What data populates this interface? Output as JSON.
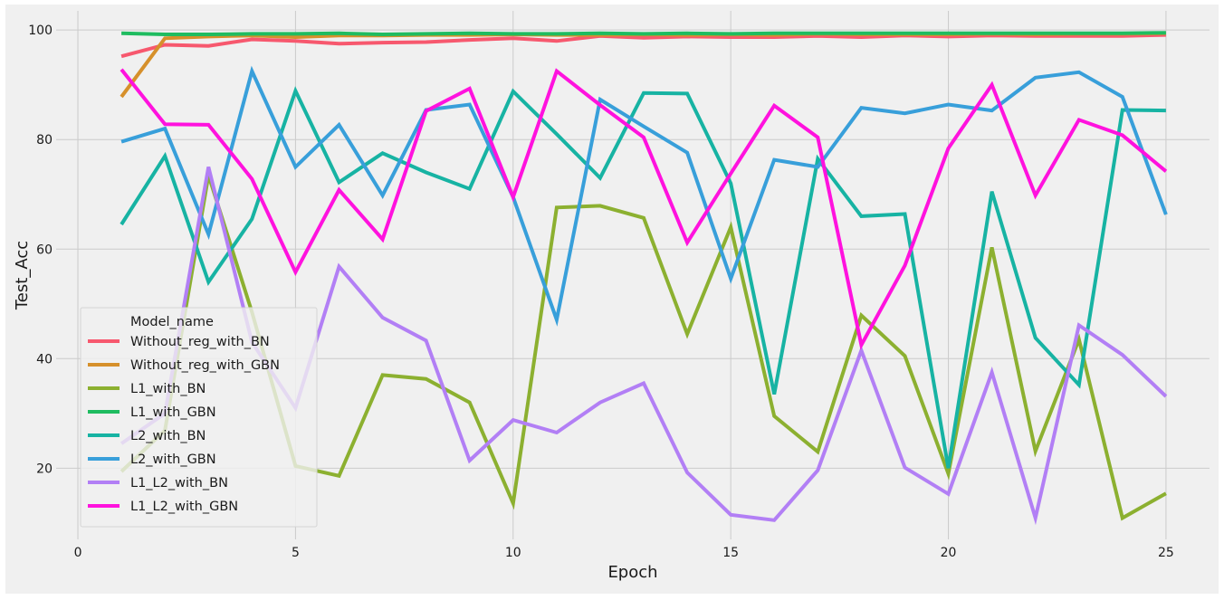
{
  "chart_data": {
    "type": "line",
    "title": "",
    "xlabel": "Epoch",
    "ylabel": "Test_Acc",
    "xlim": [
      -0.5,
      26.0
    ],
    "ylim": [
      7,
      103.5
    ],
    "xticks": [
      0,
      5,
      10,
      15,
      20,
      25
    ],
    "yticks": [
      20,
      40,
      60,
      80,
      100
    ],
    "grid": true,
    "legend": {
      "title": "Model_name",
      "placement": "lower-left"
    },
    "x": [
      1,
      2,
      3,
      4,
      5,
      6,
      7,
      8,
      9,
      10,
      11,
      12,
      13,
      14,
      15,
      16,
      17,
      18,
      19,
      20,
      21,
      22,
      23,
      24,
      25
    ],
    "series": [
      {
        "name": "Without_reg_with_BN",
        "color": "#f7586e",
        "values": [
          95.2,
          97.3,
          97.1,
          98.3,
          98.0,
          97.5,
          97.7,
          97.8,
          98.2,
          98.5,
          98.0,
          98.9,
          98.6,
          98.8,
          98.7,
          98.7,
          98.9,
          98.7,
          99.0,
          98.8,
          99.0,
          98.9,
          98.9,
          98.9,
          99.1
        ]
      },
      {
        "name": "Without_reg_with_GBN",
        "color": "#d6902b",
        "values": [
          87.8,
          98.5,
          98.8,
          99.0,
          98.7,
          99.0,
          99.0,
          99.1,
          99.1,
          99.2,
          99.1,
          99.1,
          99.2,
          99.1,
          99.2,
          99.1,
          99.3,
          99.2,
          99.2,
          99.2,
          99.3,
          99.2,
          99.3,
          99.3,
          99.4
        ]
      },
      {
        "name": "L1_with_BN",
        "color": "#8cb030",
        "values": [
          19.4,
          26.9,
          73.5,
          48.5,
          20.4,
          18.6,
          37.0,
          36.3,
          32.0,
          13.6,
          67.6,
          67.9,
          65.7,
          44.5,
          64.0,
          29.5,
          23.0,
          47.9,
          40.5,
          19.0,
          60.3,
          23.1,
          43.5,
          10.9,
          15.4
        ]
      },
      {
        "name": "L1_with_GBN",
        "color": "#1fbc60",
        "values": [
          99.4,
          99.2,
          99.2,
          99.3,
          99.3,
          99.4,
          99.2,
          99.3,
          99.4,
          99.3,
          99.3,
          99.4,
          99.3,
          99.4,
          99.3,
          99.4,
          99.4,
          99.4,
          99.4,
          99.4,
          99.4,
          99.4,
          99.4,
          99.4,
          99.5
        ]
      },
      {
        "name": "L2_with_BN",
        "color": "#17b3a3",
        "values": [
          64.5,
          77.0,
          54.0,
          65.5,
          88.9,
          72.2,
          77.5,
          74.0,
          71.0,
          88.8,
          81.0,
          73.0,
          88.5,
          88.4,
          72.0,
          33.5,
          76.5,
          66.0,
          66.4,
          20.0,
          70.5,
          43.8,
          35.2,
          85.4,
          85.3
        ]
      },
      {
        "name": "L2_with_GBN",
        "color": "#389fda",
        "values": [
          79.6,
          82.0,
          62.7,
          92.5,
          75.0,
          82.7,
          69.8,
          85.4,
          86.4,
          69.5,
          47.1,
          87.3,
          82.4,
          77.6,
          54.6,
          76.3,
          75.0,
          85.8,
          84.8,
          86.4,
          85.3,
          91.3,
          92.3,
          87.8,
          66.3
        ]
      },
      {
        "name": "L1_L2_with_BN",
        "color": "#b27ff5",
        "values": [
          24.5,
          30.0,
          75.0,
          43.0,
          31.0,
          56.8,
          47.5,
          43.3,
          21.4,
          28.8,
          26.5,
          32.0,
          35.5,
          19.2,
          11.5,
          10.5,
          19.6,
          41.5,
          20.1,
          15.3,
          37.5,
          10.9,
          46.1,
          40.7,
          33.1
        ]
      },
      {
        "name": "L1_L2_with_GBN",
        "color": "#ff12de",
        "values": [
          92.8,
          82.8,
          82.7,
          72.8,
          55.8,
          70.8,
          61.8,
          85.2,
          89.3,
          69.5,
          92.5,
          86.3,
          80.4,
          61.2,
          73.8,
          86.2,
          80.4,
          42.5,
          57.0,
          78.4,
          90.0,
          69.8,
          83.6,
          80.8,
          74.2
        ]
      }
    ]
  }
}
